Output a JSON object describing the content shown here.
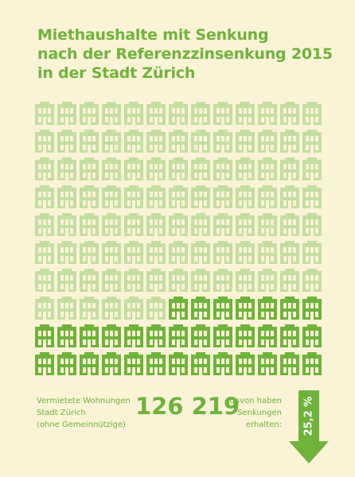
{
  "title": {
    "line1": "Miethaushalte mit Senkung",
    "line2": "nach der Referenzzinsenkung 2015",
    "line3": "in der Stadt Zürich"
  },
  "grid": {
    "rows": 10,
    "columns": 13,
    "highlighted_count": 33,
    "icon": "house-icon",
    "colors": {
      "light": "#c4dea0",
      "dark": "#6eb33a",
      "background": "#faf3d6"
    }
  },
  "stats": {
    "left_label_line1": "Vermietete Wohnungen",
    "left_label_line2": "Stadt Zürich",
    "left_label_line3": "(ohne Gemeinnützige)",
    "total": "126 219",
    "right_label_line1": "davon haben",
    "right_label_line2": "Senkungen",
    "right_label_line3": "erhalten:",
    "percentage": "25,2 %"
  }
}
